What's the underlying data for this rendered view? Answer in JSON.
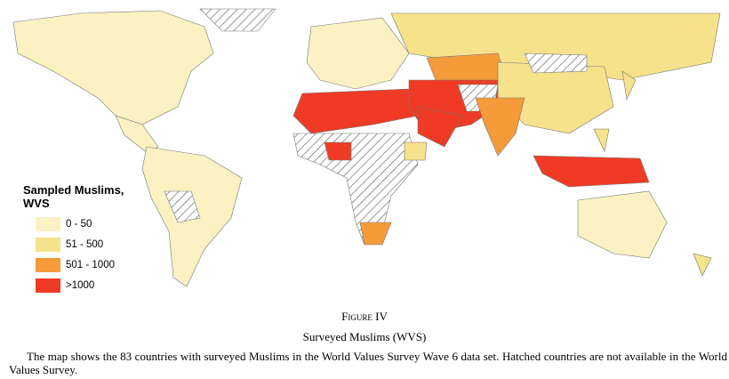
{
  "legend": {
    "title": "Sampled Muslims, WVS",
    "items": [
      {
        "label": "0 - 50",
        "color": "#fbf1c2"
      },
      {
        "label": "51 - 500",
        "color": "#f6e28a"
      },
      {
        "label": "501 - 1000",
        "color": "#f59b3a"
      },
      {
        "label": ">1000",
        "color": "#ef3b25"
      }
    ]
  },
  "caption": {
    "figure": "Figure IV",
    "title": "Surveyed Muslims (WVS)",
    "text": "The map shows the 83 countries with surveyed Muslims in the World Values Survey Wave 6 data set. Hatched countries are not available in the World Values Survey."
  }
}
